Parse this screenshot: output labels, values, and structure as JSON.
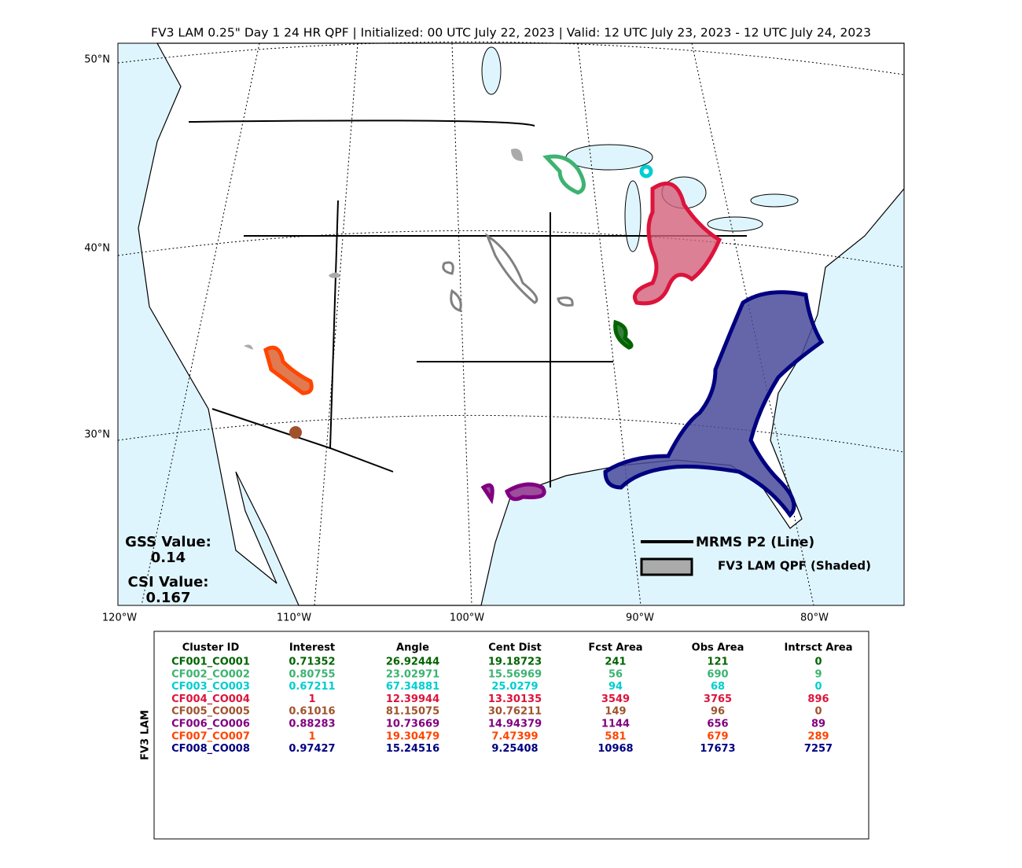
{
  "title": "FV3 LAM 0.25\" Day 1 24 HR QPF | Initialized: 00 UTC July 22, 2023 | Valid: 12 UTC July 23, 2023 - 12 UTC July 24, 2023",
  "map": {
    "lat_labels": [
      "50°N",
      "40°N",
      "30°N"
    ],
    "lon_labels": [
      "120°W",
      "110°W",
      "100°W",
      "90°W",
      "80°W"
    ]
  },
  "legend": {
    "line": "MRMS P2 (Line)",
    "shaded": "FV3 LAM QPF (Shaded)"
  },
  "scores": {
    "gss_label": "GSS Value:",
    "gss": "0.14",
    "csi_label": "CSI Value:",
    "csi": "0.167"
  },
  "table": {
    "side_label": "FV3 LAM",
    "header": [
      "Cluster ID",
      "Interest",
      "Angle",
      "Cent Dist",
      "Fcst Area",
      "Obs Area",
      "Intrsct Area"
    ],
    "rows": [
      {
        "color": "#006400",
        "cells": [
          "CF001_CO001",
          "0.71352",
          "26.92444",
          "19.18723",
          "241",
          "121",
          "0"
        ]
      },
      {
        "color": "#3cb371",
        "cells": [
          "CF002_CO002",
          "0.80755",
          "23.02971",
          "15.56969",
          "56",
          "690",
          "9"
        ]
      },
      {
        "color": "#00ced1",
        "cells": [
          "CF003_CO003",
          "0.67211",
          "67.34881",
          "25.0279",
          "94",
          "68",
          "0"
        ]
      },
      {
        "color": "#dc143c",
        "cells": [
          "CF004_CO004",
          "1",
          "12.39944",
          "13.30135",
          "3549",
          "3765",
          "896"
        ]
      },
      {
        "color": "#a0522d",
        "cells": [
          "CF005_CO005",
          "0.61016",
          "81.15075",
          "30.76211",
          "149",
          "96",
          "0"
        ]
      },
      {
        "color": "#800080",
        "cells": [
          "CF006_CO006",
          "0.88283",
          "10.73669",
          "14.94379",
          "1144",
          "656",
          "89"
        ]
      },
      {
        "color": "#ff4500",
        "cells": [
          "CF007_CO007",
          "1",
          "19.30479",
          "7.47399",
          "581",
          "679",
          "289"
        ]
      },
      {
        "color": "#000080",
        "cells": [
          "CF008_CO008",
          "0.97427",
          "15.24516",
          "9.25408",
          "10968",
          "17673",
          "7257"
        ]
      }
    ]
  }
}
